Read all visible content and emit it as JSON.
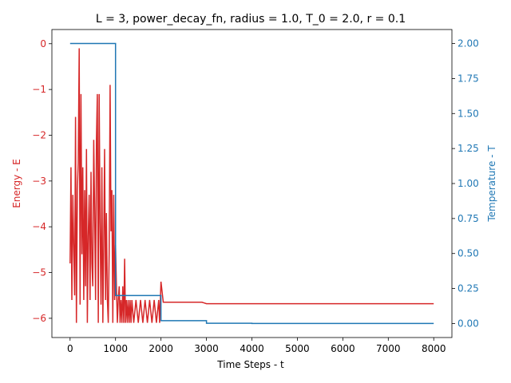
{
  "chart_data": {
    "type": "line",
    "title": "L = 3, power_decay_fn, radius = 1.0, T_0 = 2.0, r = 0.1",
    "xlabel": "Time Steps - t",
    "ylabel_left": "Energy - E",
    "ylabel_right": "Temperature - T",
    "xlim": [
      -400,
      8400
    ],
    "ylim_left": [
      -6.42,
      0.31
    ],
    "ylim_right": [
      -0.1,
      2.1
    ],
    "x_ticks": [
      0,
      1000,
      2000,
      3000,
      4000,
      5000,
      6000,
      7000,
      8000
    ],
    "y_ticks_left": [
      0,
      -1,
      -2,
      -3,
      -4,
      -5,
      -6
    ],
    "y_ticks_right": [
      0.0,
      0.25,
      0.5,
      0.75,
      1.0,
      1.25,
      1.5,
      1.75,
      2.0
    ],
    "y_tick_labels_left": [
      "0",
      "−1",
      "−2",
      "−3",
      "−4",
      "−5",
      "−6"
    ],
    "y_tick_labels_right": [
      "0.00",
      "0.25",
      "0.50",
      "0.75",
      "1.00",
      "1.25",
      "1.50",
      "1.75",
      "2.00"
    ],
    "colors": {
      "energy": "#d62728",
      "temperature": "#1f77b4"
    },
    "series": [
      {
        "axis": "left",
        "x": [
          0,
          20,
          40,
          60,
          80,
          100,
          120,
          140,
          160,
          180,
          200,
          220,
          240,
          260,
          280,
          300,
          320,
          340,
          360,
          380,
          400,
          420,
          440,
          460,
          480,
          500,
          520,
          540,
          560,
          580,
          600,
          620,
          640,
          660,
          680,
          700,
          720,
          740,
          760,
          780,
          800,
          820,
          840,
          860,
          880,
          900,
          920,
          940,
          960,
          980,
          1000,
          1020,
          1040,
          1060,
          1080,
          1100,
          1120,
          1140,
          1160,
          1180,
          1200,
          1220,
          1240,
          1260,
          1280,
          1300,
          1320,
          1340,
          1360,
          1400,
          1450,
          1500,
          1550,
          1600,
          1650,
          1700,
          1750,
          1800,
          1850,
          1900,
          1950,
          1970,
          2000,
          2050,
          2100,
          2200,
          2300,
          2400,
          2500,
          2600,
          2700,
          2800,
          2900,
          3000,
          8000
        ],
        "values": [
          -4.8,
          -2.7,
          -5.6,
          -3.3,
          -4.4,
          -5.5,
          -1.6,
          -6.1,
          -3.2,
          -2.6,
          -0.1,
          -5.7,
          -1.1,
          -4.6,
          -2.7,
          -5.6,
          -3.2,
          -5.3,
          -2.3,
          -6.1,
          -4.2,
          -3.3,
          -5.6,
          -2.8,
          -4.8,
          -5.3,
          -2.1,
          -3.6,
          -5.6,
          -2.1,
          -1.1,
          -6.1,
          -1.1,
          -3.9,
          -5.7,
          -2.7,
          -6.1,
          -4.4,
          -2.3,
          -5.6,
          -3.7,
          -5.6,
          -6.1,
          -4.6,
          -0.9,
          -4.1,
          -3.2,
          -6.1,
          -3.3,
          -5.6,
          -4.4,
          -5.3,
          -6.1,
          -5.6,
          -5.3,
          -6.1,
          -5.6,
          -6.1,
          -5.3,
          -6.1,
          -4.7,
          -6.1,
          -5.6,
          -6.1,
          -5.6,
          -6.1,
          -5.6,
          -6.1,
          -5.6,
          -6.1,
          -5.6,
          -6.1,
          -5.6,
          -6.1,
          -5.6,
          -6.1,
          -5.6,
          -6.1,
          -5.6,
          -6.1,
          -5.6,
          -6.1,
          -5.2,
          -5.65,
          -5.65,
          -5.65,
          -5.65,
          -5.65,
          -5.65,
          -5.65,
          -5.65,
          -5.65,
          -5.65,
          -5.68,
          -5.68
        ]
      },
      {
        "axis": "right",
        "x": [
          0,
          1000,
          1000,
          2000,
          2000,
          3000,
          3000,
          4000,
          4000,
          8000
        ],
        "values": [
          2.0,
          2.0,
          0.2,
          0.2,
          0.02,
          0.02,
          0.002,
          0.002,
          0.0002,
          0.0002
        ]
      }
    ],
    "grid": false,
    "legend": "none"
  }
}
